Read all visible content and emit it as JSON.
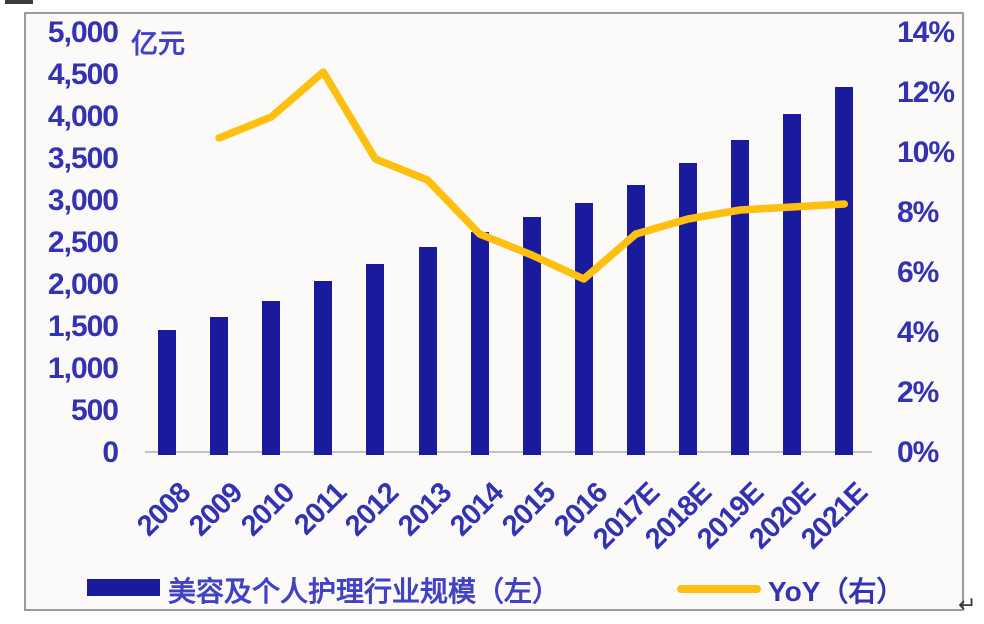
{
  "chart_data": {
    "type": "bar+line",
    "categories": [
      "2008",
      "2009",
      "2010",
      "2011",
      "2012",
      "2013",
      "2014",
      "2015",
      "2016",
      "2017E",
      "2018E",
      "2019E",
      "2020E",
      "2021E"
    ],
    "series": [
      {
        "name": "美容及个人护理行业规模（左）",
        "type": "bar",
        "axis": "left",
        "values": [
          1470,
          1620,
          1810,
          2050,
          2250,
          2450,
          2630,
          2810,
          2980,
          3190,
          3450,
          3730,
          4030,
          4360
        ],
        "color": "#1a1a9c"
      },
      {
        "name": "YoY（右）",
        "type": "line",
        "axis": "right",
        "values": [
          null,
          10.5,
          11.2,
          12.7,
          9.8,
          9.1,
          7.3,
          6.6,
          5.8,
          7.3,
          7.8,
          8.1,
          8.2,
          8.3
        ],
        "color": "#fdc010"
      }
    ],
    "left_axis": {
      "unit": "亿元",
      "min": 0,
      "max": 5000,
      "step": 500,
      "ticks": [
        "5,000",
        "4,500",
        "4,000",
        "3,500",
        "3,000",
        "2,500",
        "2,000",
        "1,500",
        "1,000",
        "500",
        "0"
      ]
    },
    "right_axis": {
      "min_pct": 0,
      "max_pct": 14,
      "step_pct": 2,
      "ticks": [
        "14%",
        "12%",
        "10%",
        "8%",
        "6%",
        "4%",
        "2%",
        "0%"
      ]
    },
    "legend": [
      {
        "label": "美容及个人护理行业规模（左）",
        "swatch": "bar"
      },
      {
        "label": "YoY（右）",
        "swatch": "line"
      }
    ],
    "grid": "off",
    "legend_position": "bottom",
    "colors": {
      "bar": "#1a1a9c",
      "line": "#fdc010",
      "axis_text": "#3232b2",
      "chinese_text": "#4242c4",
      "frame_border": "#9b9b9b",
      "baseline": "#c2c2c2",
      "plot_background": "#fbfaf8"
    }
  },
  "artifacts": {
    "return_mark": "↵"
  }
}
